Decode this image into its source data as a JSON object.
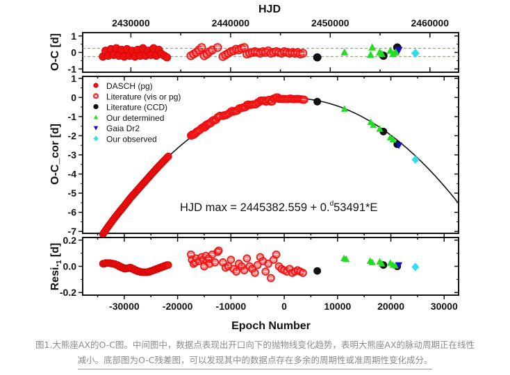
{
  "chart_data": [
    {
      "type": "scatter",
      "panel": "top",
      "title": "",
      "xlabel_top": "HJD",
      "ylabel": "O-C [d]",
      "ylim": [
        -1.2,
        1.2
      ],
      "yticks": [
        1,
        0,
        -1
      ],
      "ytick_labels": [
        "1",
        "0",
        "-1"
      ],
      "top_xticks": [
        2430000,
        2440000,
        2450000,
        2460000
      ],
      "top_xtick_labels": [
        "2430000",
        "2440000",
        "2450000",
        "2460000"
      ],
      "reference_lines": [
        0.25,
        -0.25
      ],
      "reference_line_color": "#55cc33",
      "series": [
        {
          "name": "DASCH (pg)",
          "marker": "filled-circle",
          "color": "#ee1111",
          "x": [
            -34000,
            -33500,
            -33000,
            -32500,
            -32000,
            -31500,
            -31000,
            -30500,
            -30000,
            -29500,
            -29000,
            -28500,
            -28000,
            -27500,
            -27000,
            -26500,
            -26000,
            -25500,
            -25000,
            -24500,
            -24000,
            -23500,
            -23000,
            -22500,
            -22000
          ],
          "y": [
            -0.25,
            0.1,
            -0.2,
            0.2,
            -0.15,
            0.25,
            -0.2,
            0.15,
            -0.25,
            0.2,
            -0.2,
            0.1,
            -0.25,
            0.15,
            -0.2,
            0.25,
            -0.2,
            0.1,
            -0.15,
            0.25,
            -0.2,
            0.15,
            -0.1,
            -0.2,
            -0.3
          ]
        },
        {
          "name": "Literature (vis or pg)",
          "marker": "open-circle",
          "color": "#ee1111",
          "x": [
            -17500,
            -17000,
            -16500,
            -16000,
            -15500,
            -15000,
            -14500,
            -14000,
            -13500,
            -12500,
            -11500,
            -11000,
            -10500,
            -10000,
            -9500,
            -9000,
            -8500,
            -8000,
            -7500,
            -7000,
            -6500,
            -6000,
            -5500,
            -5000,
            -4500,
            -4000,
            -3500,
            -3000,
            -2500,
            -2000,
            -1500,
            -1000,
            -500,
            0,
            500,
            1000,
            1500,
            2000,
            2500,
            3000,
            3500
          ],
          "y": [
            -0.2,
            -0.1,
            0.0,
            0.15,
            0.3,
            -0.2,
            -0.1,
            0.05,
            0.15,
            0.3,
            -0.25,
            -0.15,
            -0.05,
            0.05,
            0.1,
            0.2,
            0.15,
            0.25,
            0.3,
            -0.1,
            -0.05,
            0.0,
            0.05,
            0.0,
            -0.05,
            0.05,
            0.0,
            0.1,
            -0.05,
            0.0,
            0.05,
            0.0,
            -0.05,
            0.05,
            0.0,
            -0.05,
            0.0,
            -0.05,
            0.0,
            -0.1,
            -0.05
          ]
        },
        {
          "name": "Literature (CCD)",
          "marker": "filled-circle",
          "color": "#111111",
          "x": [
            6200,
            18600,
            21200
          ],
          "y": [
            -0.3,
            -0.2,
            0.3
          ]
        },
        {
          "name": "Our determined",
          "marker": "triangle-up",
          "color": "#22dd22",
          "x": [
            11300,
            16200,
            16500,
            17900,
            18300,
            19900,
            20400,
            20900
          ],
          "y": [
            0.0,
            -0.15,
            0.3,
            0.0,
            -0.1,
            0.1,
            -0.1,
            0.0
          ]
        },
        {
          "name": "Gaia Dr2",
          "marker": "triangle-down",
          "color": "#1111bb",
          "x": [
            21500
          ],
          "y": [
            0.15
          ]
        },
        {
          "name": "Our observed",
          "marker": "diamond",
          "color": "#33ddee",
          "x": [
            24600
          ],
          "y": [
            -0.05
          ]
        }
      ]
    },
    {
      "type": "scatter",
      "panel": "middle",
      "ylabel": "O-C_cor [d]",
      "ylim": [
        -7.1,
        1.1
      ],
      "yticks": [
        1,
        0,
        -1,
        -2,
        -3,
        -4,
        -5,
        -6,
        -7
      ],
      "ytick_labels": [
        "1",
        "0",
        "-1",
        "-2",
        "-3",
        "-4",
        "-5",
        "-6",
        "-7"
      ],
      "annotation": "HJD max = 2445382.559 + 0.",
      "annotation_superscript": "d",
      "annotation_tail": "53491*E",
      "legend": {
        "position": "top-left",
        "entries": [
          {
            "label": "DASCH (pg)",
            "marker": "filled-circle",
            "color": "#ee1111"
          },
          {
            "label": "Literature (vis or pg)",
            "marker": "open-circle",
            "color": "#ee1111"
          },
          {
            "label": "Literature (CCD)",
            "marker": "filled-circle",
            "color": "#111111"
          },
          {
            "label": "Our determined",
            "marker": "triangle-up",
            "color": "#22dd22"
          },
          {
            "label": "Gaia Dr2",
            "marker": "triangle-down",
            "color": "#1111bb"
          },
          {
            "label": "Our observed",
            "marker": "diamond",
            "color": "#33ddee"
          }
        ]
      },
      "fit_curve": {
        "type": "parabola",
        "color": "#111111",
        "vertex_epoch": 1500,
        "vertex_value": -0.04,
        "coefficient": -5.65e-09
      },
      "series": [
        {
          "name": "DASCH (pg)",
          "x_range": [
            -34000,
            -22000
          ],
          "y_source": "fit_plus_residual"
        },
        {
          "name": "Literature (vis or pg)",
          "x_range": [
            -17500,
            3500
          ],
          "y_source": "fit_plus_residual"
        },
        {
          "name": "Literature (CCD)",
          "x": [
            6200,
            18600,
            21200
          ],
          "y": [
            -0.22,
            -1.78,
            -2.45
          ]
        },
        {
          "name": "Our determined",
          "x": [
            11300,
            16200,
            16700,
            17900,
            19900,
            20400
          ],
          "y": [
            -0.6,
            -1.3,
            -1.45,
            -1.65,
            -2.1,
            -2.2
          ]
        },
        {
          "name": "Gaia Dr2",
          "x": [
            21500
          ],
          "y": [
            -2.5
          ]
        },
        {
          "name": "Our observed",
          "x": [
            24600
          ],
          "y": [
            -3.25
          ]
        }
      ]
    },
    {
      "type": "scatter",
      "panel": "bottom",
      "ylabel": "Resi.",
      "ylabel_subscript": "1",
      "ylabel_unit": " [d]",
      "ylim": [
        -0.22,
        0.22
      ],
      "yticks": [
        0.2,
        0.0,
        -0.2
      ],
      "ytick_labels": [
        "0.2",
        "0.0",
        "-0.2"
      ],
      "xlabel": "Epoch Number",
      "xlim": [
        -37800,
        32700
      ],
      "xticks": [
        -30000,
        -20000,
        -10000,
        0,
        10000,
        20000,
        30000
      ],
      "xtick_labels": [
        "-30000",
        "-20000",
        "-10000",
        "0",
        "10000",
        "20000",
        "30000"
      ],
      "series": [
        {
          "name": "DASCH (pg)",
          "marker": "filled-circle",
          "color": "#ee1111",
          "x": [
            -34000,
            -33500,
            -33000,
            -32500,
            -32000,
            -31500,
            -31000,
            -30500,
            -30000,
            -29500,
            -29000,
            -28500,
            -28000,
            -27500,
            -27000,
            -26500,
            -26000,
            -25500,
            -25000,
            -24500,
            -24000,
            -23500,
            -23000,
            -22500,
            -22000
          ],
          "y": [
            0.02,
            0.025,
            0.025,
            0.022,
            0.018,
            0.01,
            0.0,
            -0.01,
            -0.018,
            -0.015,
            -0.01,
            -0.02,
            -0.03,
            -0.038,
            -0.043,
            -0.045,
            -0.045,
            -0.042,
            -0.035,
            -0.028,
            -0.02,
            -0.012,
            -0.005,
            0.003,
            0.01
          ]
        },
        {
          "name": "Literature (vis or pg)",
          "marker": "open-circle",
          "color": "#ee1111",
          "x": [
            -17500,
            -17300,
            -17000,
            -16700,
            -16500,
            -16000,
            -15500,
            -15200,
            -15000,
            -14700,
            -14500,
            -14200,
            -14000,
            -13500,
            -13000,
            -12500,
            -12300,
            -11500,
            -11000,
            -10500,
            -10000,
            -9500,
            -9000,
            -8500,
            -8000,
            -7500,
            -7000,
            -6500,
            -6000,
            -5500,
            -5000,
            -4500,
            -4000,
            -3500,
            -3000,
            -2500,
            -2000,
            -1500,
            -1000,
            -500,
            0,
            500,
            1000,
            1500,
            2000,
            2500,
            3000,
            3500
          ],
          "y": [
            0.09,
            0.05,
            0.02,
            0.03,
            0.06,
            0.04,
            0.07,
            0.05,
            0.0,
            0.08,
            0.04,
            0.06,
            0.02,
            0.09,
            0.03,
            0.11,
            0.12,
            0.03,
            -0.01,
            0.0,
            0.05,
            -0.02,
            -0.04,
            0.02,
            0.0,
            -0.03,
            0.06,
            0.0,
            -0.02,
            -0.05,
            0.01,
            0.07,
            0.04,
            -0.04,
            0.02,
            -0.09,
            0.05,
            0.09,
            0.0,
            -0.02,
            -0.03,
            -0.04,
            -0.02,
            -0.05,
            -0.04,
            -0.03,
            -0.04,
            -0.05
          ]
        },
        {
          "name": "Literature (CCD)",
          "marker": "filled-circle",
          "color": "#111111",
          "x": [
            6200,
            18600,
            21200
          ],
          "y": [
            -0.035,
            0.01,
            0.0
          ]
        },
        {
          "name": "Our determined",
          "marker": "triangle-up",
          "color": "#22dd22",
          "x": [
            11200,
            11600,
            16100,
            16500,
            17900,
            18300,
            19900,
            20400,
            20900
          ],
          "y": [
            0.06,
            0.055,
            0.04,
            0.03,
            0.035,
            0.02,
            0.025,
            0.01,
            0.005
          ]
        },
        {
          "name": "Gaia Dr2",
          "marker": "triangle-down",
          "color": "#1111bb",
          "x": [
            21500
          ],
          "y": [
            0.01
          ]
        },
        {
          "name": "Our observed",
          "marker": "diamond",
          "color": "#33ddee",
          "x": [
            24600
          ],
          "y": [
            -0.005
          ]
        }
      ]
    }
  ],
  "caption": {
    "line1": "图1.大熊座AX的O-C图。中间图中，数据点表现出开口向下的抛物线变化趋势，表明大熊座AX的脉动周期正在线性",
    "line2": "减小。底部图为O-C残差图，可以发现其中的数据点存在多余的周期性或准周期性变化成分。"
  }
}
